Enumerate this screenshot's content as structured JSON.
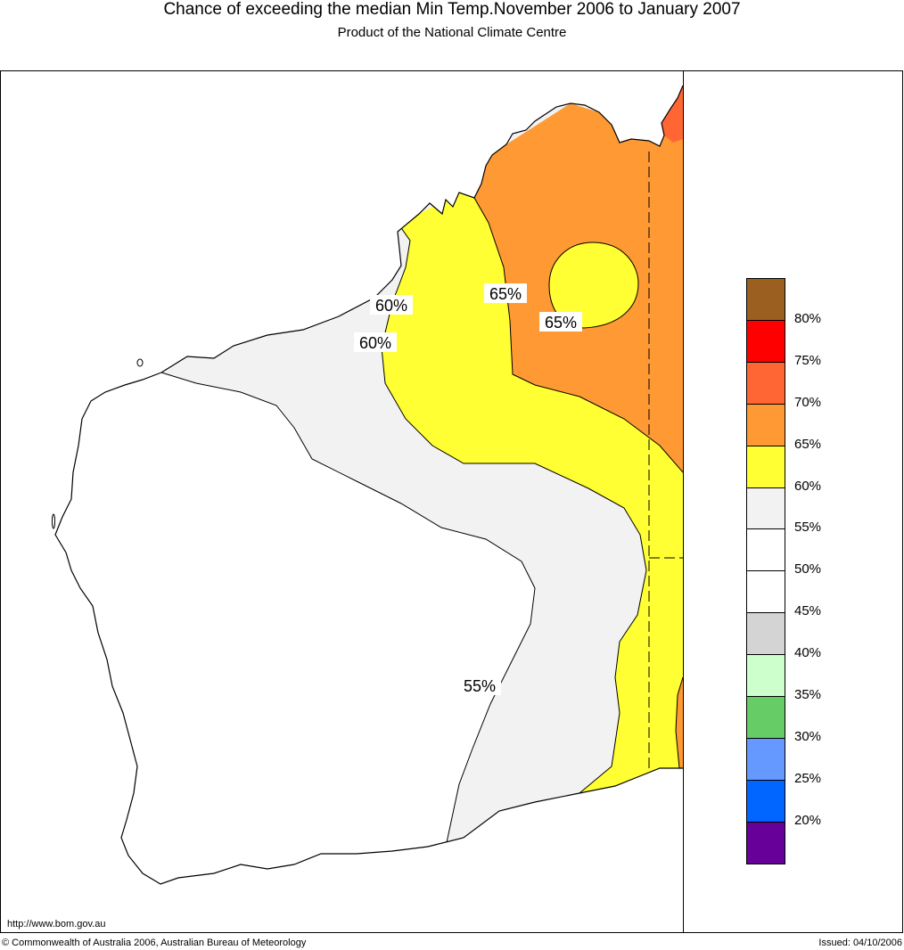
{
  "header": {
    "title": "Chance of exceeding the median Min Temp.November 2006 to January 2007",
    "subtitle": "Product of the National Climate Centre"
  },
  "map": {
    "contour_labels": [
      "60%",
      "60%",
      "65%",
      "65%",
      "55%"
    ],
    "colors": {
      "c55_60": "#f2f2f2",
      "c60_65": "#ffff33",
      "c65_70": "#ff9933",
      "c70_75": "#ff6633",
      "c50_55": "#ffffff"
    }
  },
  "legend": {
    "labels": [
      "80%",
      "75%",
      "70%",
      "65%",
      "60%",
      "55%",
      "50%",
      "45%",
      "40%",
      "35%",
      "30%",
      "25%",
      "20%"
    ],
    "colors": [
      "#9b6020",
      "#ff0000",
      "#ff6633",
      "#ff9933",
      "#ffff33",
      "#f2f2f2",
      "#ffffff",
      "#ffffff",
      "#d4d4d4",
      "#ccffcc",
      "#66cc66",
      "#6699ff",
      "#0066ff",
      "#660099"
    ]
  },
  "footer": {
    "url": "http://www.bom.gov.au",
    "copyright": "© Commonwealth of Australia 2006, Australian Bureau of Meteorology",
    "issued": "Issued: 04/10/2006"
  }
}
